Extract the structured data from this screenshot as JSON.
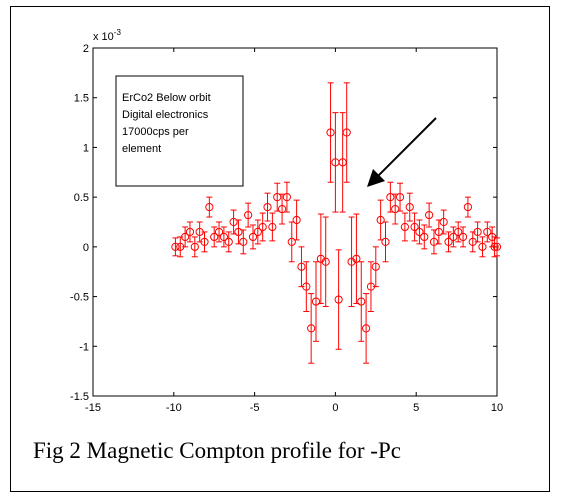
{
  "chart_data": {
    "type": "scatter",
    "marker": "circle",
    "has_error_bars": true,
    "color": "#ff0000",
    "xlim": [
      -15,
      10
    ],
    "ylim": [
      -1.5,
      2
    ],
    "y_multiplier_label": "x 10",
    "y_multiplier_exponent": "-3",
    "x_ticks": [
      "-15",
      "-10",
      "-5",
      "0",
      "5",
      "10"
    ],
    "y_ticks": [
      "-1.5",
      "-1",
      "-0.5",
      "0",
      "0.5",
      "1",
      "1.5",
      "2"
    ],
    "grid": false,
    "legend_box": {
      "lines": [
        "ErCo2 Below orbit",
        "Digital electronics",
        "17000cps per",
        "element"
      ],
      "placement": "top-left"
    },
    "annotation": {
      "type": "arrow",
      "pointing_to": [
        1.8,
        0.55
      ]
    },
    "points": [
      {
        "x": -9.9,
        "y": 0.0,
        "err": 0.09
      },
      {
        "x": -9.6,
        "y": 0.0,
        "err": 0.1
      },
      {
        "x": -9.3,
        "y": 0.1,
        "err": 0.1
      },
      {
        "x": -9.0,
        "y": 0.15,
        "err": 0.1
      },
      {
        "x": -8.7,
        "y": 0.0,
        "err": 0.1
      },
      {
        "x": -8.4,
        "y": 0.15,
        "err": 0.1
      },
      {
        "x": -8.1,
        "y": 0.05,
        "err": 0.1
      },
      {
        "x": -7.8,
        "y": 0.4,
        "err": 0.1
      },
      {
        "x": -7.5,
        "y": 0.1,
        "err": 0.1
      },
      {
        "x": -7.2,
        "y": 0.15,
        "err": 0.1
      },
      {
        "x": -6.9,
        "y": 0.1,
        "err": 0.1
      },
      {
        "x": -6.6,
        "y": 0.05,
        "err": 0.1
      },
      {
        "x": -6.3,
        "y": 0.25,
        "err": 0.12
      },
      {
        "x": -6.0,
        "y": 0.15,
        "err": 0.12
      },
      {
        "x": -5.7,
        "y": 0.05,
        "err": 0.12
      },
      {
        "x": -5.4,
        "y": 0.32,
        "err": 0.12
      },
      {
        "x": -5.1,
        "y": 0.1,
        "err": 0.12
      },
      {
        "x": -4.8,
        "y": 0.15,
        "err": 0.12
      },
      {
        "x": -4.5,
        "y": 0.2,
        "err": 0.14
      },
      {
        "x": -4.2,
        "y": 0.4,
        "err": 0.14
      },
      {
        "x": -3.9,
        "y": 0.2,
        "err": 0.14
      },
      {
        "x": -3.6,
        "y": 0.5,
        "err": 0.14
      },
      {
        "x": -3.3,
        "y": 0.38,
        "err": 0.15
      },
      {
        "x": -3.0,
        "y": 0.5,
        "err": 0.15
      },
      {
        "x": -2.7,
        "y": 0.05,
        "err": 0.2
      },
      {
        "x": -2.4,
        "y": 0.27,
        "err": 0.2
      },
      {
        "x": -2.1,
        "y": -0.2,
        "err": 0.2
      },
      {
        "x": -1.8,
        "y": -0.4,
        "err": 0.25
      },
      {
        "x": -1.5,
        "y": -0.82,
        "err": 0.35
      },
      {
        "x": -1.2,
        "y": -0.55,
        "err": 0.4
      },
      {
        "x": -0.9,
        "y": -0.12,
        "err": 0.45
      },
      {
        "x": -0.6,
        "y": -0.15,
        "err": 0.45
      },
      {
        "x": -0.3,
        "y": 1.15,
        "err": 0.5
      },
      {
        "x": 0.0,
        "y": 0.85,
        "err": 0.5
      },
      {
        "x": 0.2,
        "y": -0.53,
        "err": 0.5
      },
      {
        "x": 0.45,
        "y": 0.85,
        "err": 0.5
      },
      {
        "x": 0.7,
        "y": 1.15,
        "err": 0.5
      },
      {
        "x": 1.0,
        "y": -0.15,
        "err": 0.45
      },
      {
        "x": 1.3,
        "y": -0.12,
        "err": 0.45
      },
      {
        "x": 1.6,
        "y": -0.55,
        "err": 0.4
      },
      {
        "x": 1.9,
        "y": -0.82,
        "err": 0.35
      },
      {
        "x": 2.2,
        "y": -0.4,
        "err": 0.25
      },
      {
        "x": 2.5,
        "y": -0.2,
        "err": 0.2
      },
      {
        "x": 2.8,
        "y": 0.27,
        "err": 0.2
      },
      {
        "x": 3.1,
        "y": 0.05,
        "err": 0.2
      },
      {
        "x": 3.4,
        "y": 0.5,
        "err": 0.15
      },
      {
        "x": 3.7,
        "y": 0.38,
        "err": 0.15
      },
      {
        "x": 4.0,
        "y": 0.5,
        "err": 0.14
      },
      {
        "x": 4.3,
        "y": 0.2,
        "err": 0.14
      },
      {
        "x": 4.6,
        "y": 0.4,
        "err": 0.14
      },
      {
        "x": 4.9,
        "y": 0.2,
        "err": 0.14
      },
      {
        "x": 5.2,
        "y": 0.15,
        "err": 0.12
      },
      {
        "x": 5.5,
        "y": 0.1,
        "err": 0.12
      },
      {
        "x": 5.8,
        "y": 0.32,
        "err": 0.12
      },
      {
        "x": 6.1,
        "y": 0.05,
        "err": 0.12
      },
      {
        "x": 6.4,
        "y": 0.15,
        "err": 0.12
      },
      {
        "x": 6.7,
        "y": 0.25,
        "err": 0.12
      },
      {
        "x": 7.0,
        "y": 0.05,
        "err": 0.1
      },
      {
        "x": 7.3,
        "y": 0.1,
        "err": 0.1
      },
      {
        "x": 7.6,
        "y": 0.15,
        "err": 0.1
      },
      {
        "x": 7.9,
        "y": 0.1,
        "err": 0.1
      },
      {
        "x": 8.2,
        "y": 0.4,
        "err": 0.1
      },
      {
        "x": 8.5,
        "y": 0.05,
        "err": 0.1
      },
      {
        "x": 8.8,
        "y": 0.15,
        "err": 0.1
      },
      {
        "x": 9.1,
        "y": 0.0,
        "err": 0.1
      },
      {
        "x": 9.4,
        "y": 0.15,
        "err": 0.1
      },
      {
        "x": 9.7,
        "y": 0.1,
        "err": 0.1
      },
      {
        "x": 9.85,
        "y": 0.0,
        "err": 0.1
      },
      {
        "x": 10.0,
        "y": 0.0,
        "err": 0.09
      }
    ]
  },
  "caption": "Fig 2 Magnetic Compton profile for -Pc"
}
